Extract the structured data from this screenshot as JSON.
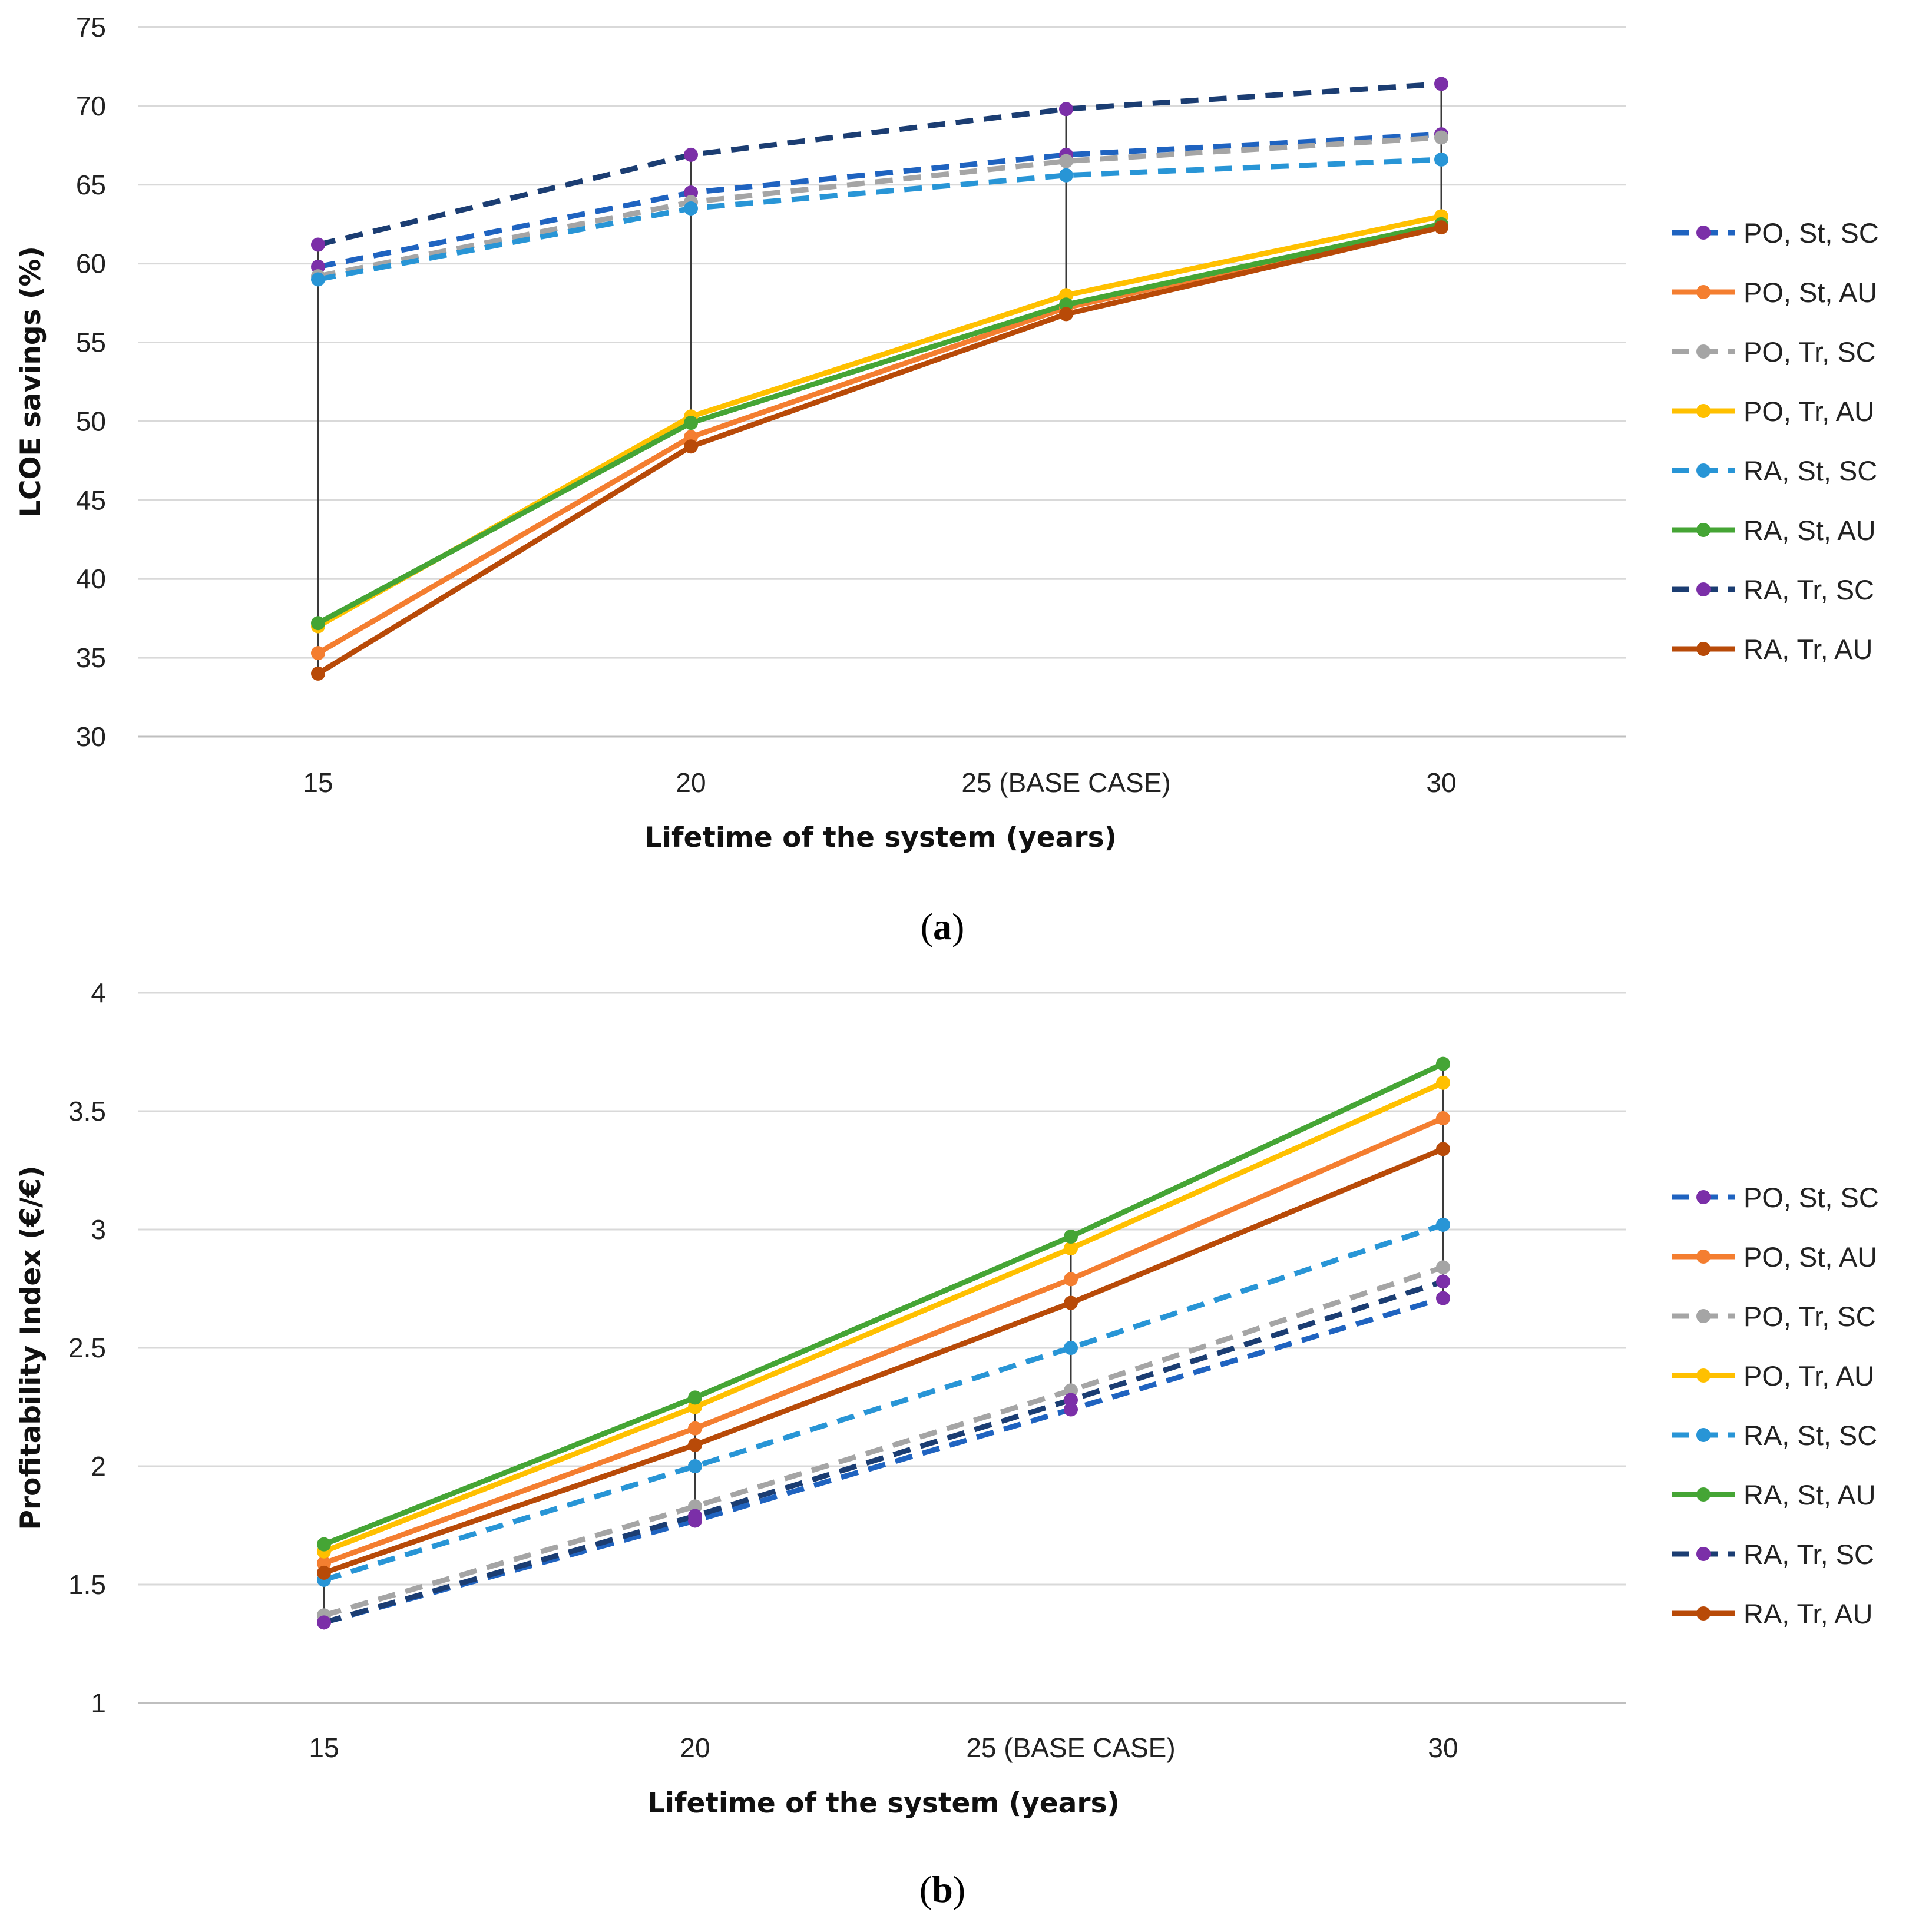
{
  "chart_data": [
    {
      "panel_label": "a",
      "type": "line",
      "title": "",
      "xlabel": "Lifetime of the system (years)",
      "ylabel": "LCOE savings (%)",
      "categories": [
        "15",
        "20",
        "25 (BASE CASE)",
        "30"
      ],
      "ylim": [
        30,
        75
      ],
      "yticks": [
        "30",
        "35",
        "40",
        "45",
        "50",
        "55",
        "60",
        "65",
        "70",
        "75"
      ],
      "grid": true,
      "legend_position": "right",
      "series": [
        {
          "name": "PO, St, SC",
          "values": [
            59.8,
            64.5,
            66.9,
            68.2
          ],
          "color": "#1F63C0",
          "dashed": true,
          "marker_color": "#7B2FA8"
        },
        {
          "name": "PO, St, AU",
          "values": [
            35.3,
            49.0,
            57.2,
            62.5
          ],
          "color": "#F47E30",
          "dashed": false,
          "marker_color": "#F47E30"
        },
        {
          "name": "PO, Tr, SC",
          "values": [
            59.2,
            63.9,
            66.5,
            68.0
          ],
          "color": "#A5A5A5",
          "dashed": true,
          "marker_color": "#A5A5A5"
        },
        {
          "name": "PO, Tr, AU",
          "values": [
            37.0,
            50.3,
            58.0,
            63.0
          ],
          "color": "#FFC000",
          "dashed": false,
          "marker_color": "#FFC000"
        },
        {
          "name": "RA, St, SC",
          "values": [
            59.0,
            63.5,
            65.6,
            66.6
          ],
          "color": "#2895D6",
          "dashed": true,
          "marker_color": "#2895D6"
        },
        {
          "name": "RA, St, AU",
          "values": [
            37.2,
            49.9,
            57.4,
            62.5
          ],
          "color": "#45A535",
          "dashed": false,
          "marker_color": "#45A535"
        },
        {
          "name": "RA, Tr, SC",
          "values": [
            61.2,
            66.9,
            69.8,
            71.4
          ],
          "color": "#1B3D72",
          "dashed": true,
          "marker_color": "#7B2FA8"
        },
        {
          "name": "RA, Tr, AU",
          "values": [
            34.0,
            48.4,
            56.8,
            62.3
          ],
          "color": "#B84A08",
          "dashed": false,
          "marker_color": "#B84A08"
        }
      ]
    },
    {
      "panel_label": "b",
      "type": "line",
      "title": "",
      "xlabel": "Lifetime of the system (years)",
      "ylabel": "Profitability Index (€/€)",
      "categories": [
        "15",
        "20",
        "25 (BASE CASE)",
        "30"
      ],
      "ylim": [
        1,
        4
      ],
      "yticks": [
        "1",
        "1.5",
        "2",
        "2.5",
        "3",
        "3.5",
        "4"
      ],
      "grid": true,
      "legend_position": "right",
      "series": [
        {
          "name": "PO, St, SC",
          "values": [
            1.34,
            1.77,
            2.24,
            2.71
          ],
          "color": "#1F63C0",
          "dashed": true,
          "marker_color": "#7B2FA8"
        },
        {
          "name": "PO, St, AU",
          "values": [
            1.59,
            2.16,
            2.79,
            3.47
          ],
          "color": "#F47E30",
          "dashed": false,
          "marker_color": "#F47E30"
        },
        {
          "name": "PO, Tr, SC",
          "values": [
            1.37,
            1.83,
            2.32,
            2.84
          ],
          "color": "#A5A5A5",
          "dashed": true,
          "marker_color": "#A5A5A5"
        },
        {
          "name": "PO, Tr, AU",
          "values": [
            1.64,
            2.25,
            2.92,
            3.62
          ],
          "color": "#FFC000",
          "dashed": false,
          "marker_color": "#FFC000"
        },
        {
          "name": "RA, St, SC",
          "values": [
            1.52,
            2.0,
            2.5,
            3.02
          ],
          "color": "#2895D6",
          "dashed": true,
          "marker_color": "#2895D6"
        },
        {
          "name": "RA, St, AU",
          "values": [
            1.67,
            2.29,
            2.97,
            3.7
          ],
          "color": "#45A535",
          "dashed": false,
          "marker_color": "#45A535"
        },
        {
          "name": "RA, Tr, SC",
          "values": [
            1.34,
            1.79,
            2.28,
            2.78
          ],
          "color": "#1B3D72",
          "dashed": true,
          "marker_color": "#7B2FA8"
        },
        {
          "name": "RA, Tr, AU",
          "values": [
            1.55,
            2.09,
            2.69,
            3.34
          ],
          "color": "#B84A08",
          "dashed": false,
          "marker_color": "#B84A08"
        }
      ]
    }
  ]
}
